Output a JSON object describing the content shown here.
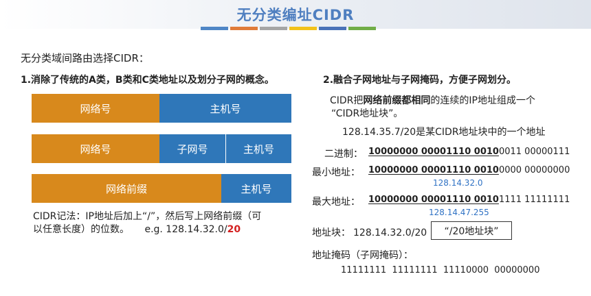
{
  "header": {
    "title": "无分类编址CIDR",
    "colors": [
      "#4f86c6",
      "#e07b39",
      "#a5a5a5",
      "#f2c21b",
      "#4a72b8",
      "#70ad47"
    ]
  },
  "intro": "无分类域间路由选择CIDR：",
  "left": {
    "heading": "1.消除了传统的A类，B类和C类地址以及划分子网的概念。",
    "row1": {
      "net": "网络号",
      "host": "主机号"
    },
    "row2": {
      "net": "网络号",
      "subnet": "子网号",
      "host": "主机号"
    },
    "row3": {
      "prefix": "网络前缀",
      "host": "主机号"
    },
    "note_line1": "CIDR记法：IP地址后加上“/”，然后写上网络前缀（可",
    "note_line2": "以任意长度）的位数。",
    "example_prefix": "e.g. 128.14.32.0/",
    "example_len": "20"
  },
  "right": {
    "heading": "2.融合子网地址与子网掩码，方便子网划分。",
    "desc_pre": "CIDR把",
    "desc_bold": "网络前缀都相同",
    "desc_post": "的连续的IP地址组成一个",
    "desc_line2": "“CIDR地址块”。",
    "example": "128.14.35.7/20是某CIDR地址块中的一个地址",
    "binary": {
      "label": "二进制：",
      "prefix": "10000000 00001110 0010",
      "rest": "0011 00000111"
    },
    "min": {
      "label": "最小地址：",
      "prefix": "10000000 00001110 0010",
      "rest": "0000 00000000",
      "dotted": "128.14.32.0"
    },
    "max": {
      "label": "最大地址：",
      "prefix": "10000000 00001110 0010",
      "rest": "1111 11111111",
      "dotted": "128.14.47.255"
    },
    "block_label": "地址块：",
    "block_value": "128.14.32.0/20",
    "block_tag": "“/20地址块”",
    "mask_label": "地址掩码（子网掩码）：",
    "mask_value": "11111111  11111111  11110000  00000000"
  }
}
